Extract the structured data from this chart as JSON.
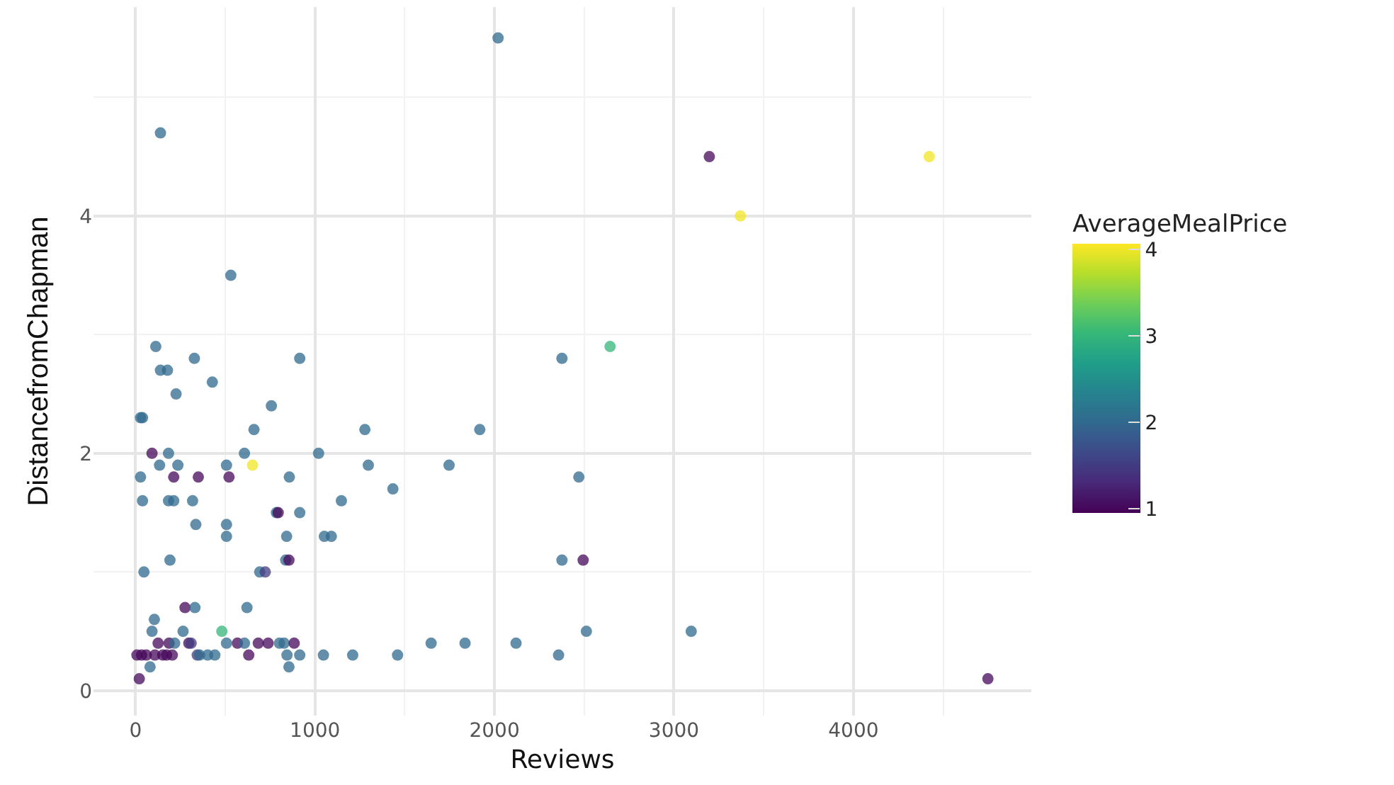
{
  "chart_data": {
    "type": "scatter",
    "xlabel": "Reviews",
    "ylabel": "DistancefromChapman",
    "clabel": "AverageMealPrice",
    "x": [
      113,
      328,
      915,
      139,
      178,
      428,
      226,
      28,
      39,
      757,
      660,
      1278,
      92,
      184,
      607,
      1020,
      134,
      236,
      507,
      652,
      1297,
      28,
      213,
      350,
      521,
      857,
      1434,
      39,
      184,
      213,
      318,
      1147,
      785,
      795,
      915,
      336,
      507,
      507,
      842,
      1052,
      1091,
      192,
      837,
      855,
      47,
      692,
      723,
      276,
      331,
      621,
      105,
      92,
      265,
      481,
      126,
      187,
      218,
      297,
      310,
      507,
      568,
      607,
      684,
      739,
      802,
      828,
      884,
      8,
      34,
      60,
      108,
      152,
      173,
      205,
      344,
      357,
      402,
      442,
      631,
      844,
      915,
      1047,
      1210,
      1460,
      81,
      855,
      21,
      2644,
      2376,
      1918,
      1747,
      2470,
      2376,
      2494,
      2512,
      1647,
      1836,
      2120,
      2357,
      3096,
      4749,
      139,
      531,
      2020,
      3197,
      3370,
      4422
    ],
    "values": [
      2.9,
      2.8,
      2.8,
      2.7,
      2.7,
      2.6,
      2.5,
      2.3,
      2.3,
      2.4,
      2.2,
      2.2,
      2.0,
      2.0,
      2.0,
      2.0,
      1.9,
      1.9,
      1.9,
      1.9,
      1.9,
      1.8,
      1.8,
      1.8,
      1.8,
      1.8,
      1.7,
      1.6,
      1.6,
      1.6,
      1.6,
      1.6,
      1.5,
      1.5,
      1.5,
      1.4,
      1.4,
      1.3,
      1.3,
      1.3,
      1.3,
      1.1,
      1.1,
      1.1,
      1.0,
      1.0,
      1.0,
      0.7,
      0.7,
      0.7,
      0.6,
      0.5,
      0.5,
      0.5,
      0.4,
      0.4,
      0.4,
      0.4,
      0.4,
      0.4,
      0.4,
      0.4,
      0.4,
      0.4,
      0.4,
      0.4,
      0.4,
      0.3,
      0.3,
      0.3,
      0.3,
      0.3,
      0.3,
      0.3,
      0.3,
      0.3,
      0.3,
      0.3,
      0.3,
      0.3,
      0.3,
      0.3,
      0.3,
      0.3,
      0.2,
      0.2,
      0.1,
      2.9,
      2.8,
      2.2,
      1.9,
      1.8,
      1.1,
      1.1,
      0.5,
      0.4,
      0.4,
      0.4,
      0.3,
      0.5,
      0.1,
      4.7,
      3.5,
      5.5,
      4.5,
      4.0,
      4.5
    ],
    "cvalues": [
      2,
      2,
      2,
      2,
      2,
      2,
      2,
      2,
      2,
      2,
      2,
      2,
      1,
      2,
      2,
      2,
      2,
      2,
      2,
      4,
      2,
      2,
      1,
      1,
      1,
      2,
      2,
      2,
      2,
      2,
      2,
      2,
      2,
      1,
      2,
      2,
      2,
      2,
      2,
      2,
      2,
      2,
      2,
      1,
      2,
      2,
      1.5,
      1,
      2,
      2,
      2,
      2,
      2,
      3,
      1,
      1,
      2,
      1,
      1.5,
      2,
      1,
      2,
      1,
      1,
      2,
      2,
      1,
      1,
      1,
      1,
      1,
      1,
      1,
      1,
      1.5,
      2,
      2,
      2,
      1,
      2,
      2,
      2,
      2,
      2,
      2,
      2,
      1,
      3,
      2,
      2,
      2,
      2,
      2,
      1,
      2,
      2,
      2,
      2,
      2,
      2,
      1,
      2,
      2,
      2,
      1,
      4,
      4
    ],
    "xlim": [
      -234,
      4991
    ],
    "xticks": [
      0,
      1000,
      2000,
      3000,
      4000
    ],
    "ylim": [
      -0.21,
      5.76
    ],
    "yticks": [
      0,
      2,
      4
    ],
    "clim": [
      0.94,
      4.06
    ],
    "cticks": [
      1,
      2,
      3,
      4
    ],
    "grid": true,
    "marker": "circle"
  }
}
